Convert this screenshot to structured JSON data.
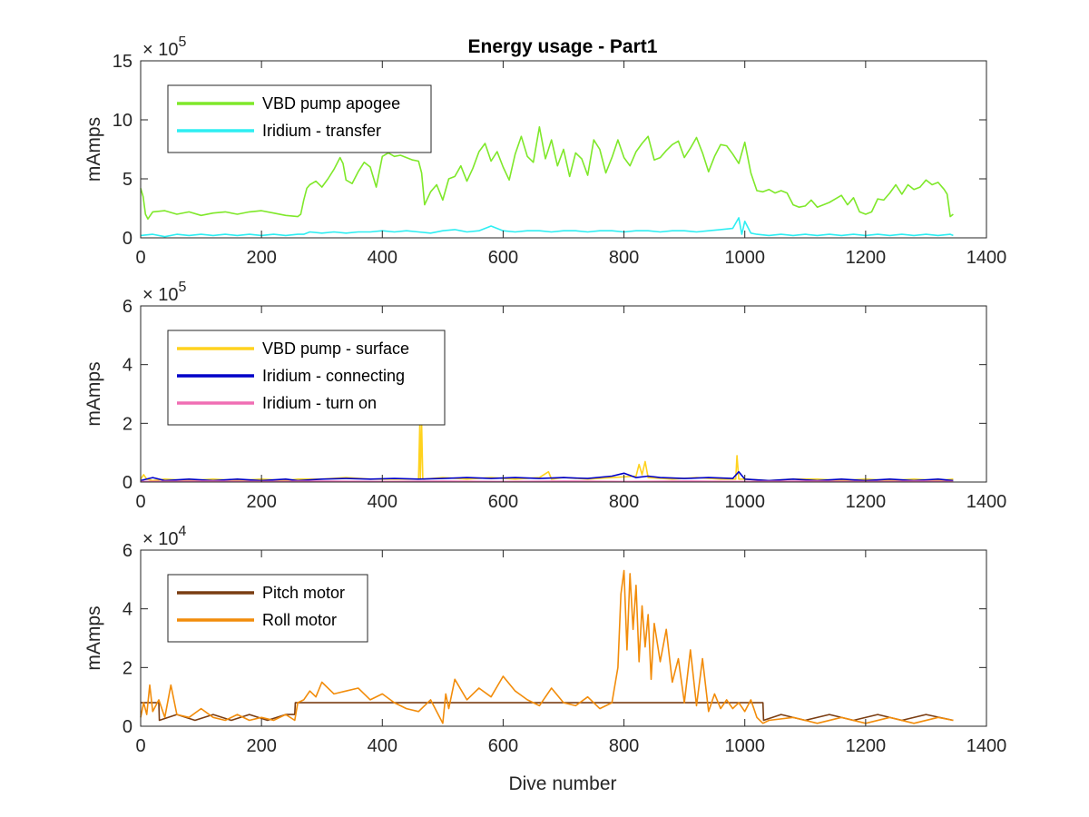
{
  "chart_data": [
    {
      "type": "line",
      "title": "Energy usage - Part1",
      "xlabel": "",
      "ylabel": "mAmps",
      "y_exponent": "× 10",
      "y_exponent_power": "5",
      "xlim": [
        0,
        1400
      ],
      "ylim": [
        0,
        15
      ],
      "xticks": [
        "0",
        "200",
        "400",
        "600",
        "800",
        "1000",
        "1200",
        "1400"
      ],
      "yticks": [
        "0",
        "5",
        "10",
        "15"
      ],
      "legend_position": "top-left",
      "series": [
        {
          "name": "VBD pump apogee",
          "color": "#7FE82A",
          "x": [
            0,
            4,
            8,
            12,
            20,
            40,
            60,
            80,
            100,
            120,
            140,
            160,
            180,
            200,
            220,
            240,
            260,
            265,
            270,
            275,
            280,
            290,
            300,
            310,
            320,
            330,
            335,
            340,
            350,
            360,
            370,
            380,
            390,
            400,
            410,
            420,
            430,
            440,
            450,
            460,
            465,
            470,
            480,
            490,
            500,
            510,
            520,
            530,
            540,
            550,
            560,
            570,
            580,
            590,
            600,
            610,
            620,
            630,
            640,
            650,
            660,
            670,
            680,
            690,
            700,
            710,
            720,
            730,
            740,
            750,
            760,
            770,
            780,
            790,
            800,
            810,
            820,
            830,
            840,
            850,
            860,
            870,
            880,
            890,
            900,
            910,
            920,
            930,
            940,
            950,
            960,
            970,
            980,
            990,
            1000,
            1010,
            1020,
            1030,
            1040,
            1050,
            1060,
            1070,
            1080,
            1090,
            1100,
            1110,
            1120,
            1130,
            1140,
            1150,
            1160,
            1170,
            1180,
            1190,
            1200,
            1210,
            1220,
            1230,
            1240,
            1250,
            1260,
            1270,
            1280,
            1290,
            1300,
            1310,
            1320,
            1330,
            1335,
            1340,
            1345
          ],
          "values": [
            4.2,
            3.5,
            2.0,
            1.6,
            2.2,
            2.3,
            2.0,
            2.2,
            1.9,
            2.1,
            2.2,
            2.0,
            2.2,
            2.3,
            2.1,
            1.9,
            1.8,
            2.0,
            3.2,
            4.2,
            4.5,
            4.8,
            4.3,
            5.0,
            5.8,
            6.8,
            6.3,
            4.9,
            4.6,
            5.6,
            6.4,
            6.0,
            4.3,
            6.9,
            7.2,
            6.9,
            7.0,
            6.8,
            6.6,
            6.5,
            5.5,
            2.8,
            3.9,
            4.5,
            3.2,
            5.0,
            5.2,
            6.1,
            4.8,
            5.9,
            7.3,
            8.0,
            6.5,
            7.3,
            6.0,
            4.9,
            7.1,
            8.6,
            6.9,
            6.4,
            9.4,
            6.7,
            8.3,
            6.1,
            7.5,
            5.2,
            7.2,
            6.7,
            5.3,
            8.3,
            7.5,
            5.5,
            6.8,
            8.3,
            6.8,
            6.1,
            7.3,
            8.0,
            8.6,
            6.6,
            6.8,
            7.4,
            7.9,
            8.2,
            6.8,
            7.6,
            8.5,
            7.2,
            5.6,
            6.9,
            7.9,
            7.8,
            7.1,
            6.3,
            8.1,
            5.5,
            4.0,
            3.9,
            4.1,
            3.8,
            4.0,
            3.8,
            2.8,
            2.6,
            2.7,
            3.2,
            2.6,
            2.8,
            3.0,
            3.3,
            3.6,
            2.8,
            3.4,
            2.2,
            2.0,
            2.2,
            3.3,
            3.2,
            3.8,
            4.5,
            3.7,
            4.5,
            4.1,
            4.3,
            4.9,
            4.5,
            4.7,
            4.1,
            3.7,
            1.8,
            2.0
          ]
        },
        {
          "name": "Iridium - transfer",
          "color": "#2EEEF2",
          "x": [
            0,
            20,
            40,
            60,
            80,
            100,
            120,
            140,
            160,
            180,
            200,
            220,
            240,
            260,
            270,
            280,
            300,
            320,
            340,
            360,
            380,
            400,
            420,
            440,
            460,
            480,
            500,
            520,
            540,
            560,
            580,
            600,
            620,
            640,
            660,
            680,
            700,
            720,
            740,
            760,
            780,
            800,
            820,
            840,
            860,
            880,
            900,
            920,
            940,
            960,
            980,
            990,
            995,
            1000,
            1010,
            1020,
            1040,
            1060,
            1080,
            1100,
            1120,
            1140,
            1160,
            1180,
            1200,
            1220,
            1240,
            1260,
            1280,
            1300,
            1320,
            1340,
            1345
          ],
          "values": [
            0.2,
            0.3,
            0.1,
            0.3,
            0.2,
            0.3,
            0.2,
            0.3,
            0.2,
            0.3,
            0.2,
            0.3,
            0.2,
            0.3,
            0.3,
            0.5,
            0.4,
            0.5,
            0.4,
            0.5,
            0.5,
            0.6,
            0.5,
            0.6,
            0.5,
            0.4,
            0.6,
            0.7,
            0.5,
            0.6,
            1.0,
            0.6,
            0.5,
            0.6,
            0.6,
            0.5,
            0.6,
            0.6,
            0.5,
            0.6,
            0.6,
            0.5,
            0.6,
            0.6,
            0.5,
            0.6,
            0.6,
            0.5,
            0.6,
            0.7,
            0.8,
            1.7,
            0.3,
            1.4,
            0.4,
            0.3,
            0.2,
            0.3,
            0.2,
            0.3,
            0.2,
            0.3,
            0.2,
            0.3,
            0.2,
            0.3,
            0.2,
            0.3,
            0.2,
            0.3,
            0.2,
            0.3,
            0.2
          ]
        }
      ]
    },
    {
      "type": "line",
      "title": "",
      "xlabel": "",
      "ylabel": "mAmps",
      "y_exponent": "× 10",
      "y_exponent_power": "5",
      "xlim": [
        0,
        1400
      ],
      "ylim": [
        0,
        6
      ],
      "xticks": [
        "0",
        "200",
        "400",
        "600",
        "800",
        "1000",
        "1200",
        "1400"
      ],
      "yticks": [
        "0",
        "2",
        "4",
        "6"
      ],
      "legend_position": "top-left",
      "series": [
        {
          "name": "VBD pump - surface",
          "color": "#FFD21E",
          "x": [
            0,
            5,
            10,
            20,
            40,
            80,
            120,
            160,
            200,
            240,
            260,
            300,
            340,
            380,
            420,
            460,
            462,
            463,
            465,
            467,
            470,
            500,
            540,
            580,
            620,
            660,
            675,
            680,
            700,
            740,
            780,
            820,
            825,
            830,
            835,
            840,
            880,
            920,
            960,
            985,
            987,
            990,
            1000,
            1040,
            1080,
            1120,
            1160,
            1200,
            1240,
            1280,
            1320,
            1345
          ],
          "values": [
            0.1,
            0.25,
            0.1,
            0.05,
            0.1,
            0.05,
            0.1,
            0.05,
            0.1,
            0.05,
            0.1,
            0.1,
            0.15,
            0.1,
            0.1,
            0.1,
            2.0,
            0.1,
            2.0,
            0.1,
            0.1,
            0.15,
            0.1,
            0.15,
            0.1,
            0.15,
            0.35,
            0.1,
            0.15,
            0.1,
            0.15,
            0.2,
            0.6,
            0.25,
            0.7,
            0.15,
            0.1,
            0.15,
            0.1,
            0.1,
            0.9,
            0.1,
            0.1,
            0.05,
            0.1,
            0.1,
            0.05,
            0.1,
            0.05,
            0.1,
            0.05,
            0.1
          ]
        },
        {
          "name": "Iridium - connecting",
          "color": "#0000C8",
          "x": [
            0,
            20,
            40,
            80,
            120,
            160,
            200,
            240,
            260,
            300,
            340,
            380,
            420,
            460,
            500,
            540,
            580,
            620,
            660,
            700,
            740,
            780,
            800,
            820,
            840,
            860,
            900,
            940,
            980,
            990,
            1000,
            1040,
            1080,
            1120,
            1160,
            1200,
            1240,
            1280,
            1320,
            1345
          ],
          "values": [
            0.05,
            0.15,
            0.05,
            0.1,
            0.05,
            0.1,
            0.05,
            0.1,
            0.05,
            0.1,
            0.12,
            0.1,
            0.12,
            0.1,
            0.12,
            0.15,
            0.12,
            0.15,
            0.12,
            0.15,
            0.12,
            0.2,
            0.3,
            0.15,
            0.2,
            0.15,
            0.12,
            0.15,
            0.12,
            0.35,
            0.1,
            0.05,
            0.1,
            0.05,
            0.1,
            0.05,
            0.1,
            0.05,
            0.1,
            0.05
          ]
        },
        {
          "name": "Iridium - turn on",
          "color": "#F06EB4",
          "x": [
            0,
            100,
            200,
            300,
            400,
            500,
            600,
            700,
            800,
            900,
            1000,
            1100,
            1200,
            1300,
            1345
          ],
          "values": [
            0.02,
            0.03,
            0.02,
            0.03,
            0.02,
            0.03,
            0.02,
            0.03,
            0.02,
            0.03,
            0.02,
            0.03,
            0.02,
            0.03,
            0.02
          ]
        }
      ]
    },
    {
      "type": "line",
      "title": "",
      "xlabel": "Dive number",
      "ylabel": "mAmps",
      "y_exponent": "× 10",
      "y_exponent_power": "4",
      "xlim": [
        0,
        1400
      ],
      "ylim": [
        0,
        6
      ],
      "xticks": [
        "0",
        "200",
        "400",
        "600",
        "800",
        "1000",
        "1200",
        "1400"
      ],
      "yticks": [
        "0",
        "2",
        "4",
        "6"
      ],
      "legend_position": "top-left",
      "series": [
        {
          "name": "Pitch motor",
          "color": "#7A3D12",
          "x": [
            0,
            30,
            31,
            60,
            90,
            120,
            150,
            180,
            210,
            240,
            255,
            256,
            300,
            400,
            500,
            600,
            700,
            800,
            900,
            1000,
            1030,
            1031,
            1060,
            1100,
            1140,
            1180,
            1220,
            1260,
            1300,
            1345
          ],
          "values": [
            0.8,
            0.8,
            0.2,
            0.4,
            0.2,
            0.4,
            0.2,
            0.4,
            0.2,
            0.4,
            0.4,
            0.8,
            0.8,
            0.8,
            0.8,
            0.8,
            0.8,
            0.8,
            0.8,
            0.8,
            0.8,
            0.2,
            0.4,
            0.2,
            0.4,
            0.2,
            0.4,
            0.2,
            0.4,
            0.2
          ]
        },
        {
          "name": "Roll motor",
          "color": "#F28C0A",
          "x": [
            0,
            5,
            10,
            15,
            20,
            30,
            40,
            50,
            60,
            80,
            100,
            120,
            140,
            160,
            180,
            200,
            220,
            240,
            255,
            260,
            270,
            280,
            290,
            300,
            320,
            340,
            360,
            380,
            400,
            420,
            440,
            460,
            480,
            500,
            505,
            510,
            520,
            540,
            560,
            580,
            600,
            620,
            640,
            660,
            680,
            700,
            720,
            740,
            760,
            780,
            790,
            795,
            800,
            805,
            810,
            815,
            820,
            825,
            830,
            835,
            840,
            845,
            850,
            860,
            870,
            880,
            890,
            900,
            910,
            920,
            930,
            940,
            950,
            960,
            970,
            980,
            990,
            1000,
            1010,
            1020,
            1030,
            1040,
            1080,
            1120,
            1160,
            1200,
            1240,
            1280,
            1320,
            1345
          ],
          "values": [
            0.3,
            0.8,
            0.4,
            1.4,
            0.5,
            0.9,
            0.3,
            1.4,
            0.4,
            0.3,
            0.6,
            0.3,
            0.2,
            0.4,
            0.2,
            0.3,
            0.2,
            0.4,
            0.2,
            0.8,
            0.9,
            1.2,
            1.0,
            1.5,
            1.1,
            1.2,
            1.3,
            0.9,
            1.1,
            0.8,
            0.6,
            0.5,
            0.9,
            0.1,
            1.1,
            0.6,
            1.6,
            0.9,
            1.3,
            1.0,
            1.7,
            1.2,
            0.9,
            0.7,
            1.3,
            0.8,
            0.7,
            1.0,
            0.6,
            0.8,
            2.0,
            4.5,
            5.3,
            2.6,
            5.2,
            3.3,
            4.8,
            2.2,
            4.1,
            2.7,
            3.8,
            1.6,
            3.5,
            2.2,
            3.3,
            1.5,
            2.3,
            0.8,
            2.6,
            0.7,
            2.3,
            0.5,
            1.1,
            0.6,
            0.9,
            0.6,
            0.8,
            0.5,
            0.9,
            0.3,
            0.1,
            0.2,
            0.3,
            0.1,
            0.3,
            0.1,
            0.3,
            0.1,
            0.3,
            0.2
          ]
        }
      ]
    }
  ]
}
